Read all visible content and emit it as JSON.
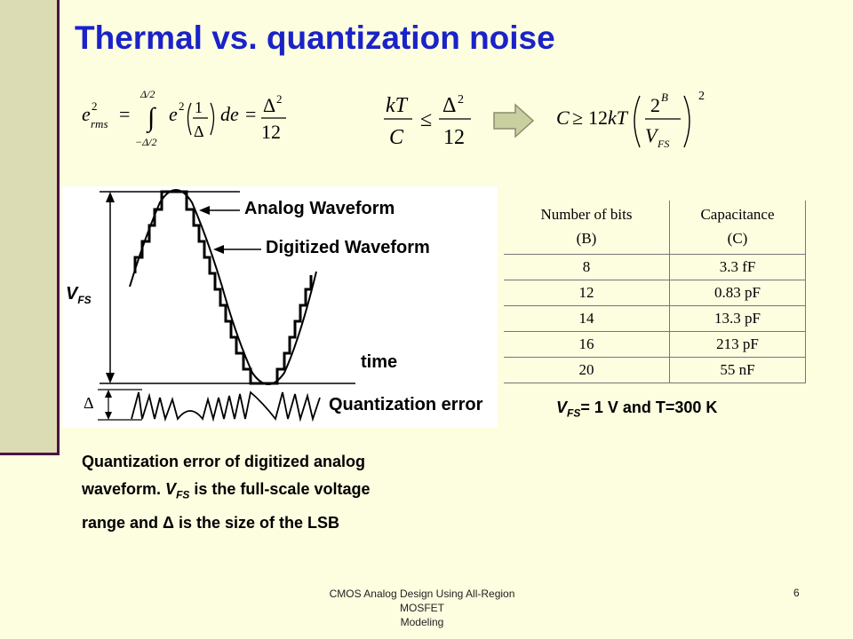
{
  "slide": {
    "title": "Thermal vs. quantization noise",
    "equations": {
      "erms": "e_rms^2 = ∫_{-Δ/2}^{Δ/2} e^2 (1/Δ) de = Δ^2/12",
      "inequality": "kT/C ≤ Δ^2/12",
      "capacitance": "C ≥ 12kT (2^B / V_FS)^2"
    },
    "figure": {
      "analog_label": "Analog Waveform",
      "digitized_label": "Digitized Waveform",
      "vfs_label": "V",
      "vfs_sub": "FS",
      "time_label": "time",
      "delta_label": "Δ",
      "qerror_label": "Quantization error"
    },
    "table": {
      "header_bits": [
        "Number of bits",
        "(B)"
      ],
      "header_cap": [
        "Capacitance",
        "(C)"
      ],
      "rows": [
        {
          "bits": "8",
          "cap": "3.3 fF"
        },
        {
          "bits": "12",
          "cap": "0.83 pF"
        },
        {
          "bits": "14",
          "cap": "13.3 pF"
        },
        {
          "bits": "16",
          "cap": "213 pF"
        },
        {
          "bits": "20",
          "cap": "55 nF"
        }
      ]
    },
    "conditions": {
      "v": "V",
      "sub": "FS",
      "rest": "= 1 V and T=300 K"
    },
    "caption": {
      "line1": "Quantization error of digitized analog",
      "line2a": "waveform. ",
      "line2v": "V",
      "line2sub": "FS",
      "line2b": " is the full-scale voltage",
      "line3": "range and Δ is the size of the LSB"
    },
    "footer": {
      "line1": "CMOS Analog Design Using All-Region MOSFET",
      "line2": "Modeling"
    },
    "page_number": "6",
    "colors": {
      "title": "#1a22c8",
      "sidebar": "#dcdcb4",
      "accent_line": "#4a1442",
      "background": "#fdfde0",
      "arrow": "#c9cf9f"
    }
  }
}
